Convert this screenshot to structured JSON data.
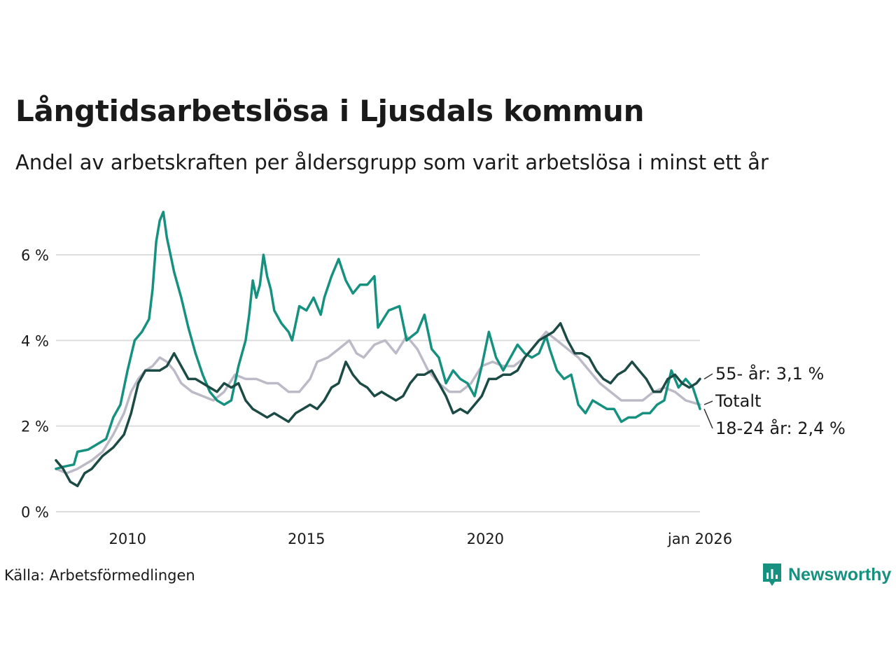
{
  "title": "Långtidsarbetslösa i Ljusdals kommun",
  "subtitle": "Andel av arbetskraften per åldersgrupp som varit arbetslösa i minst ett år",
  "source": "Källa: Arbetsförmedlingen",
  "brand": "Newsworthy",
  "colors": {
    "total": "#bdbac7",
    "age_18_24": "#16917f",
    "age_55": "#1c4a44",
    "grid": "#dddddd",
    "brand": "#16917f"
  },
  "chart_data": {
    "type": "line",
    "title": "Långtidsarbetslösa i Ljusdals kommun",
    "xlabel": "",
    "ylabel": "",
    "xlim": [
      2008.0,
      2026.0
    ],
    "ylim": [
      0,
      7
    ],
    "y_ticks": [
      0,
      2,
      4,
      6
    ],
    "y_tick_labels": [
      "0 %",
      "2 %",
      "4 %",
      "6 %"
    ],
    "x_ticks": [
      2010,
      2015,
      2020,
      2026.0
    ],
    "x_tick_labels": [
      "2010",
      "2015",
      "2020",
      "jan 2026"
    ],
    "grid": true,
    "series": [
      {
        "name": "Totalt",
        "label": "Totalt",
        "color": "#bdbac7",
        "points": [
          [
            2008.0,
            1.0
          ],
          [
            2008.3,
            0.9
          ],
          [
            2008.6,
            1.0
          ],
          [
            2009.0,
            1.2
          ],
          [
            2009.3,
            1.4
          ],
          [
            2009.6,
            1.8
          ],
          [
            2009.9,
            2.3
          ],
          [
            2010.1,
            2.8
          ],
          [
            2010.3,
            3.1
          ],
          [
            2010.5,
            3.3
          ],
          [
            2010.7,
            3.4
          ],
          [
            2010.9,
            3.6
          ],
          [
            2011.1,
            3.5
          ],
          [
            2011.3,
            3.3
          ],
          [
            2011.5,
            3.0
          ],
          [
            2011.8,
            2.8
          ],
          [
            2012.1,
            2.7
          ],
          [
            2012.4,
            2.6
          ],
          [
            2012.7,
            2.8
          ],
          [
            2013.0,
            3.2
          ],
          [
            2013.3,
            3.1
          ],
          [
            2013.6,
            3.1
          ],
          [
            2013.9,
            3.0
          ],
          [
            2014.2,
            3.0
          ],
          [
            2014.5,
            2.8
          ],
          [
            2014.8,
            2.8
          ],
          [
            2015.1,
            3.1
          ],
          [
            2015.3,
            3.5
          ],
          [
            2015.6,
            3.6
          ],
          [
            2015.9,
            3.8
          ],
          [
            2016.2,
            4.0
          ],
          [
            2016.4,
            3.7
          ],
          [
            2016.6,
            3.6
          ],
          [
            2016.9,
            3.9
          ],
          [
            2017.2,
            4.0
          ],
          [
            2017.5,
            3.7
          ],
          [
            2017.8,
            4.1
          ],
          [
            2018.1,
            3.8
          ],
          [
            2018.4,
            3.3
          ],
          [
            2018.7,
            3.0
          ],
          [
            2019.0,
            2.8
          ],
          [
            2019.3,
            2.8
          ],
          [
            2019.6,
            3.0
          ],
          [
            2019.9,
            3.4
          ],
          [
            2020.2,
            3.5
          ],
          [
            2020.5,
            3.4
          ],
          [
            2020.8,
            3.4
          ],
          [
            2021.1,
            3.6
          ],
          [
            2021.4,
            3.9
          ],
          [
            2021.7,
            4.2
          ],
          [
            2022.0,
            4.0
          ],
          [
            2022.3,
            3.8
          ],
          [
            2022.6,
            3.6
          ],
          [
            2022.9,
            3.3
          ],
          [
            2023.2,
            3.0
          ],
          [
            2023.5,
            2.8
          ],
          [
            2023.8,
            2.6
          ],
          [
            2024.1,
            2.6
          ],
          [
            2024.4,
            2.6
          ],
          [
            2024.7,
            2.8
          ],
          [
            2025.0,
            2.9
          ],
          [
            2025.3,
            2.8
          ],
          [
            2025.6,
            2.6
          ],
          [
            2026.0,
            2.5
          ]
        ]
      },
      {
        "name": "18-24 år",
        "label": "18-24 år: 2,4 %",
        "color": "#16917f",
        "points": [
          [
            2008.0,
            1.0
          ],
          [
            2008.2,
            1.05
          ],
          [
            2008.5,
            1.1
          ],
          [
            2008.6,
            1.4
          ],
          [
            2008.9,
            1.45
          ],
          [
            2009.2,
            1.6
          ],
          [
            2009.4,
            1.7
          ],
          [
            2009.6,
            2.2
          ],
          [
            2009.8,
            2.5
          ],
          [
            2010.0,
            3.3
          ],
          [
            2010.2,
            4.0
          ],
          [
            2010.4,
            4.2
          ],
          [
            2010.6,
            4.5
          ],
          [
            2010.7,
            5.2
          ],
          [
            2010.8,
            6.3
          ],
          [
            2010.9,
            6.8
          ],
          [
            2011.0,
            7.0
          ],
          [
            2011.1,
            6.4
          ],
          [
            2011.2,
            6.0
          ],
          [
            2011.3,
            5.6
          ],
          [
            2011.5,
            5.0
          ],
          [
            2011.7,
            4.3
          ],
          [
            2011.9,
            3.7
          ],
          [
            2012.1,
            3.2
          ],
          [
            2012.3,
            2.8
          ],
          [
            2012.5,
            2.6
          ],
          [
            2012.7,
            2.5
          ],
          [
            2012.9,
            2.6
          ],
          [
            2013.1,
            3.4
          ],
          [
            2013.3,
            4.0
          ],
          [
            2013.4,
            4.6
          ],
          [
            2013.5,
            5.4
          ],
          [
            2013.6,
            5.0
          ],
          [
            2013.7,
            5.3
          ],
          [
            2013.8,
            6.0
          ],
          [
            2013.9,
            5.5
          ],
          [
            2014.0,
            5.2
          ],
          [
            2014.1,
            4.7
          ],
          [
            2014.3,
            4.4
          ],
          [
            2014.5,
            4.2
          ],
          [
            2014.6,
            4.0
          ],
          [
            2014.8,
            4.8
          ],
          [
            2015.0,
            4.7
          ],
          [
            2015.2,
            5.0
          ],
          [
            2015.4,
            4.6
          ],
          [
            2015.5,
            5.0
          ],
          [
            2015.7,
            5.5
          ],
          [
            2015.9,
            5.9
          ],
          [
            2016.1,
            5.4
          ],
          [
            2016.3,
            5.1
          ],
          [
            2016.5,
            5.3
          ],
          [
            2016.7,
            5.3
          ],
          [
            2016.9,
            5.5
          ],
          [
            2017.0,
            4.3
          ],
          [
            2017.3,
            4.7
          ],
          [
            2017.6,
            4.8
          ],
          [
            2017.8,
            4.0
          ],
          [
            2018.1,
            4.2
          ],
          [
            2018.3,
            4.6
          ],
          [
            2018.5,
            3.8
          ],
          [
            2018.7,
            3.6
          ],
          [
            2018.9,
            3.0
          ],
          [
            2019.1,
            3.3
          ],
          [
            2019.3,
            3.1
          ],
          [
            2019.5,
            3.0
          ],
          [
            2019.7,
            2.7
          ],
          [
            2019.9,
            3.4
          ],
          [
            2020.1,
            4.2
          ],
          [
            2020.3,
            3.6
          ],
          [
            2020.5,
            3.3
          ],
          [
            2020.7,
            3.6
          ],
          [
            2020.9,
            3.9
          ],
          [
            2021.1,
            3.7
          ],
          [
            2021.3,
            3.6
          ],
          [
            2021.5,
            3.7
          ],
          [
            2021.7,
            4.1
          ],
          [
            2021.8,
            3.8
          ],
          [
            2022.0,
            3.3
          ],
          [
            2022.2,
            3.1
          ],
          [
            2022.4,
            3.2
          ],
          [
            2022.6,
            2.5
          ],
          [
            2022.8,
            2.3
          ],
          [
            2023.0,
            2.6
          ],
          [
            2023.2,
            2.5
          ],
          [
            2023.4,
            2.4
          ],
          [
            2023.6,
            2.4
          ],
          [
            2023.8,
            2.1
          ],
          [
            2024.0,
            2.2
          ],
          [
            2024.2,
            2.2
          ],
          [
            2024.4,
            2.3
          ],
          [
            2024.6,
            2.3
          ],
          [
            2024.8,
            2.5
          ],
          [
            2025.0,
            2.6
          ],
          [
            2025.2,
            3.3
          ],
          [
            2025.4,
            2.9
          ],
          [
            2025.6,
            3.1
          ],
          [
            2025.8,
            2.9
          ],
          [
            2026.0,
            2.4
          ]
        ]
      },
      {
        "name": "55- år",
        "label": "55- år: 3,1 %",
        "color": "#1c4a44",
        "points": [
          [
            2008.0,
            1.2
          ],
          [
            2008.2,
            1.0
          ],
          [
            2008.4,
            0.7
          ],
          [
            2008.6,
            0.6
          ],
          [
            2008.8,
            0.9
          ],
          [
            2009.0,
            1.0
          ],
          [
            2009.3,
            1.3
          ],
          [
            2009.6,
            1.5
          ],
          [
            2009.9,
            1.8
          ],
          [
            2010.1,
            2.3
          ],
          [
            2010.3,
            3.0
          ],
          [
            2010.5,
            3.3
          ],
          [
            2010.7,
            3.3
          ],
          [
            2010.9,
            3.3
          ],
          [
            2011.1,
            3.4
          ],
          [
            2011.3,
            3.7
          ],
          [
            2011.5,
            3.4
          ],
          [
            2011.7,
            3.1
          ],
          [
            2011.9,
            3.1
          ],
          [
            2012.1,
            3.0
          ],
          [
            2012.3,
            2.9
          ],
          [
            2012.5,
            2.8
          ],
          [
            2012.7,
            3.0
          ],
          [
            2012.9,
            2.9
          ],
          [
            2013.1,
            3.0
          ],
          [
            2013.3,
            2.6
          ],
          [
            2013.5,
            2.4
          ],
          [
            2013.7,
            2.3
          ],
          [
            2013.9,
            2.2
          ],
          [
            2014.1,
            2.3
          ],
          [
            2014.3,
            2.2
          ],
          [
            2014.5,
            2.1
          ],
          [
            2014.7,
            2.3
          ],
          [
            2014.9,
            2.4
          ],
          [
            2015.1,
            2.5
          ],
          [
            2015.3,
            2.4
          ],
          [
            2015.5,
            2.6
          ],
          [
            2015.7,
            2.9
          ],
          [
            2015.9,
            3.0
          ],
          [
            2016.1,
            3.5
          ],
          [
            2016.3,
            3.2
          ],
          [
            2016.5,
            3.0
          ],
          [
            2016.7,
            2.9
          ],
          [
            2016.9,
            2.7
          ],
          [
            2017.1,
            2.8
          ],
          [
            2017.3,
            2.7
          ],
          [
            2017.5,
            2.6
          ],
          [
            2017.7,
            2.7
          ],
          [
            2017.9,
            3.0
          ],
          [
            2018.1,
            3.2
          ],
          [
            2018.3,
            3.2
          ],
          [
            2018.5,
            3.3
          ],
          [
            2018.7,
            3.0
          ],
          [
            2018.9,
            2.7
          ],
          [
            2019.1,
            2.3
          ],
          [
            2019.3,
            2.4
          ],
          [
            2019.5,
            2.3
          ],
          [
            2019.7,
            2.5
          ],
          [
            2019.9,
            2.7
          ],
          [
            2020.1,
            3.1
          ],
          [
            2020.3,
            3.1
          ],
          [
            2020.5,
            3.2
          ],
          [
            2020.7,
            3.2
          ],
          [
            2020.9,
            3.3
          ],
          [
            2021.1,
            3.6
          ],
          [
            2021.3,
            3.8
          ],
          [
            2021.5,
            4.0
          ],
          [
            2021.7,
            4.1
          ],
          [
            2021.9,
            4.2
          ],
          [
            2022.1,
            4.4
          ],
          [
            2022.3,
            4.0
          ],
          [
            2022.5,
            3.7
          ],
          [
            2022.7,
            3.7
          ],
          [
            2022.9,
            3.6
          ],
          [
            2023.1,
            3.3
          ],
          [
            2023.3,
            3.1
          ],
          [
            2023.5,
            3.0
          ],
          [
            2023.7,
            3.2
          ],
          [
            2023.9,
            3.3
          ],
          [
            2024.1,
            3.5
          ],
          [
            2024.3,
            3.3
          ],
          [
            2024.5,
            3.1
          ],
          [
            2024.7,
            2.8
          ],
          [
            2024.9,
            2.8
          ],
          [
            2025.1,
            3.1
          ],
          [
            2025.3,
            3.2
          ],
          [
            2025.5,
            3.0
          ],
          [
            2025.7,
            2.9
          ],
          [
            2025.9,
            3.0
          ],
          [
            2026.0,
            3.1
          ]
        ]
      }
    ]
  }
}
